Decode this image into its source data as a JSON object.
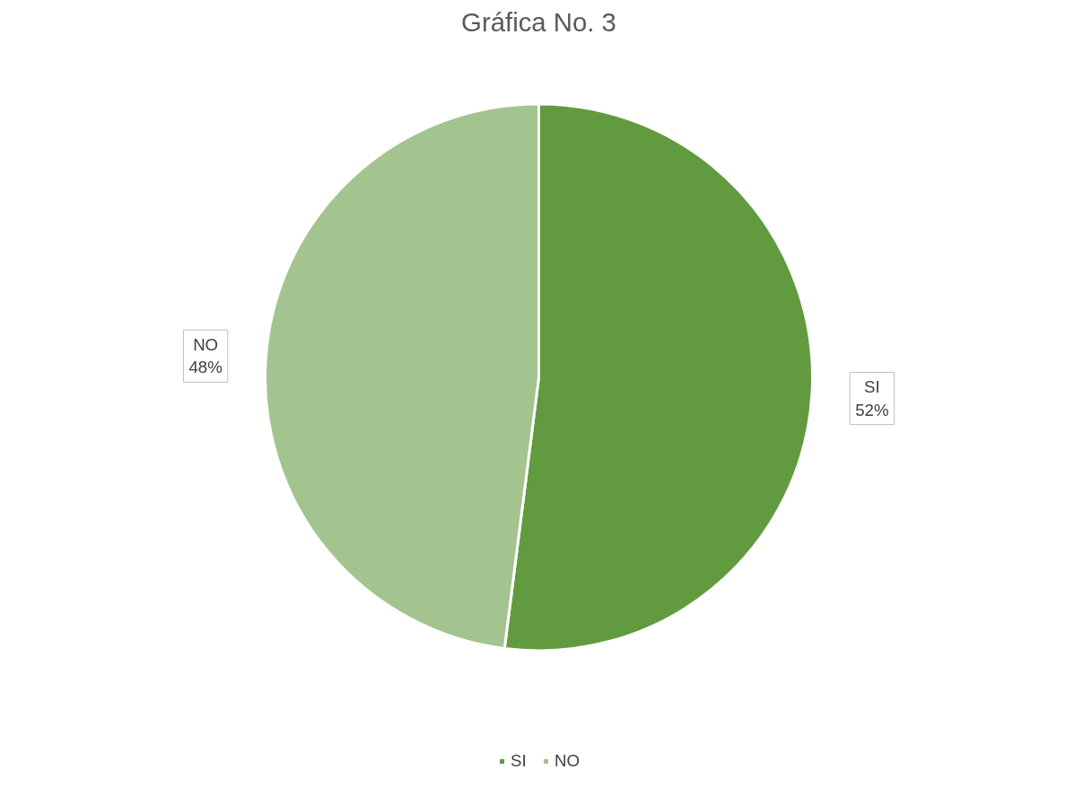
{
  "chart_data": {
    "type": "pie",
    "title": "Gráfica No. 3",
    "categories": [
      "SI",
      "NO"
    ],
    "values": [
      52,
      48
    ],
    "colors": [
      "#629b3f",
      "#a3c48f"
    ],
    "value_labels": [
      "52%",
      "48%"
    ],
    "legend": "bottom"
  }
}
